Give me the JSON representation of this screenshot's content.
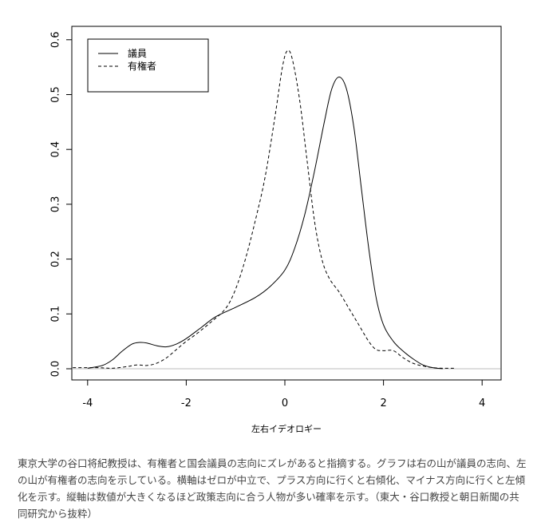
{
  "chart_data": {
    "type": "line",
    "title": "",
    "xlabel": "左右イデオロギー",
    "ylabel": "",
    "xlim": [
      -4.3,
      4.3
    ],
    "ylim": [
      -0.02,
      0.62
    ],
    "xticks": [
      -4,
      -2,
      0,
      2,
      4
    ],
    "yticks": [
      "0.0",
      "0.1",
      "0.2",
      "0.3",
      "0.4",
      "0.5",
      "0.6"
    ],
    "grid": false,
    "reference_line_y": 0,
    "legend_placement": "top-left",
    "series": [
      {
        "name": "議員",
        "style": "solid",
        "x": [
          -4.0,
          -3.7,
          -3.5,
          -3.3,
          -3.1,
          -2.95,
          -2.8,
          -2.6,
          -2.4,
          -2.2,
          -2.0,
          -1.7,
          -1.4,
          -1.0,
          -0.6,
          -0.3,
          0.0,
          0.2,
          0.4,
          0.6,
          0.8,
          0.95,
          1.1,
          1.25,
          1.4,
          1.55,
          1.7,
          1.85,
          2.0,
          2.2,
          2.4,
          2.6,
          2.8,
          3.0,
          3.2
        ],
        "y": [
          0.001,
          0.006,
          0.016,
          0.032,
          0.045,
          0.048,
          0.047,
          0.042,
          0.04,
          0.045,
          0.055,
          0.075,
          0.095,
          0.112,
          0.13,
          0.15,
          0.18,
          0.22,
          0.28,
          0.36,
          0.45,
          0.51,
          0.532,
          0.51,
          0.44,
          0.33,
          0.22,
          0.13,
          0.08,
          0.05,
          0.032,
          0.018,
          0.007,
          0.002,
          0.0
        ]
      },
      {
        "name": "有権者",
        "style": "dashed",
        "x": [
          -4.3,
          -3.8,
          -3.5,
          -3.2,
          -3.0,
          -2.8,
          -2.6,
          -2.4,
          -2.2,
          -2.0,
          -1.8,
          -1.5,
          -1.2,
          -1.0,
          -0.8,
          -0.6,
          -0.4,
          -0.2,
          -0.05,
          0.05,
          0.15,
          0.3,
          0.45,
          0.6,
          0.75,
          0.9,
          1.1,
          1.3,
          1.5,
          1.7,
          1.85,
          2.0,
          2.2,
          2.4,
          2.6,
          2.8,
          3.0,
          3.2,
          3.45
        ],
        "y": [
          0.002,
          0.002,
          0.001,
          0.004,
          0.007,
          0.006,
          0.01,
          0.02,
          0.035,
          0.05,
          0.063,
          0.085,
          0.11,
          0.145,
          0.2,
          0.27,
          0.35,
          0.46,
          0.55,
          0.58,
          0.565,
          0.49,
          0.38,
          0.27,
          0.2,
          0.165,
          0.14,
          0.11,
          0.08,
          0.05,
          0.035,
          0.033,
          0.033,
          0.02,
          0.01,
          0.005,
          0.002,
          0.001,
          0.001
        ]
      }
    ]
  },
  "caption": "東京大学の谷口将紀教授は、有権者と国会議員の志向にズレがあると指摘する。グラフは右の山が議員の志向、左の山が有権者の志向を示している。横軸はゼロが中立で、プラス方向に行くと右傾化、マイナス方向に行くと左傾化を示す。縦軸は数値が大きくなるほど政策志向に合う人物が多い確率を示す。（東大・谷口教授と朝日新聞の共同研究から抜粋）",
  "colors": {
    "line": "#000000",
    "reference_line": "#bbbbbb",
    "caption": "#444444"
  }
}
